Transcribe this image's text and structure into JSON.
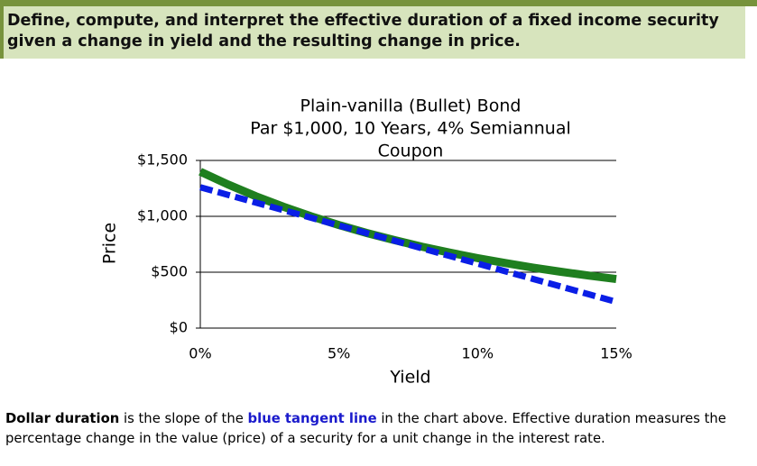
{
  "header": {
    "title": "Define, compute, and interpret the effective duration of a fixed income security given a change in yield and the resulting change in price."
  },
  "chart_data": {
    "type": "line",
    "title": [
      "Plain-vanilla (Bullet) Bond",
      "Par $1,000, 10 Years, 4% Semiannual",
      "Coupon"
    ],
    "x_label": "Yield",
    "y_label": "Price",
    "x": [
      0,
      1,
      2,
      3,
      4,
      5,
      6,
      7,
      8,
      9,
      10,
      11,
      12,
      13,
      14,
      15
    ],
    "series": [
      {
        "color": "#1f7f1f",
        "style": "solid",
        "values": [
          1400,
          1285,
          1180,
          1086,
          1000,
          922,
          851,
          787,
          728,
          675,
          626,
          582,
          541,
          504,
          470,
          439
        ]
      },
      {
        "color": "#0a1ee6",
        "style": "dashed",
        "values": [
          1260,
          1192,
          1123,
          1055,
          987,
          918,
          850,
          782,
          713,
          645,
          577,
          508,
          440,
          372,
          303,
          235
        ]
      }
    ],
    "xlim": [
      0,
      15
    ],
    "xticks": [
      {
        "value": 0,
        "label": "0%"
      },
      {
        "value": 5,
        "label": "5%"
      },
      {
        "value": 10,
        "label": "10%"
      },
      {
        "value": 15,
        "label": "15%"
      }
    ],
    "ylim": [
      0,
      1500
    ],
    "yticks": [
      {
        "value": 0,
        "label": "$0"
      },
      {
        "value": 500,
        "label": "$500"
      },
      {
        "value": 1000,
        "label": "$1,000"
      },
      {
        "value": 1500,
        "label": "$1,500"
      }
    ],
    "grid": true
  },
  "footer": {
    "line1": [
      "Dollar duration",
      " is the slope of the ",
      "blue tangent line",
      " in the chart above. Effective duration measures the"
    ],
    "line2": "percentage change in the value (price) of a security for a unit change in the interest rate."
  }
}
